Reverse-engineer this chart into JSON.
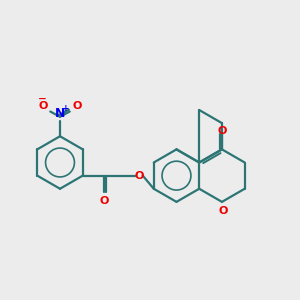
{
  "background_color": "#ececec",
  "bond_color": "#2d7575",
  "nitrogen_color": "#0000ee",
  "oxygen_color": "#ee0000",
  "line_width": 1.6,
  "figsize": [
    3.0,
    3.0
  ],
  "dpi": 100,
  "xlim": [
    0,
    12
  ],
  "ylim": [
    0,
    12
  ],
  "font_size": 7.5
}
